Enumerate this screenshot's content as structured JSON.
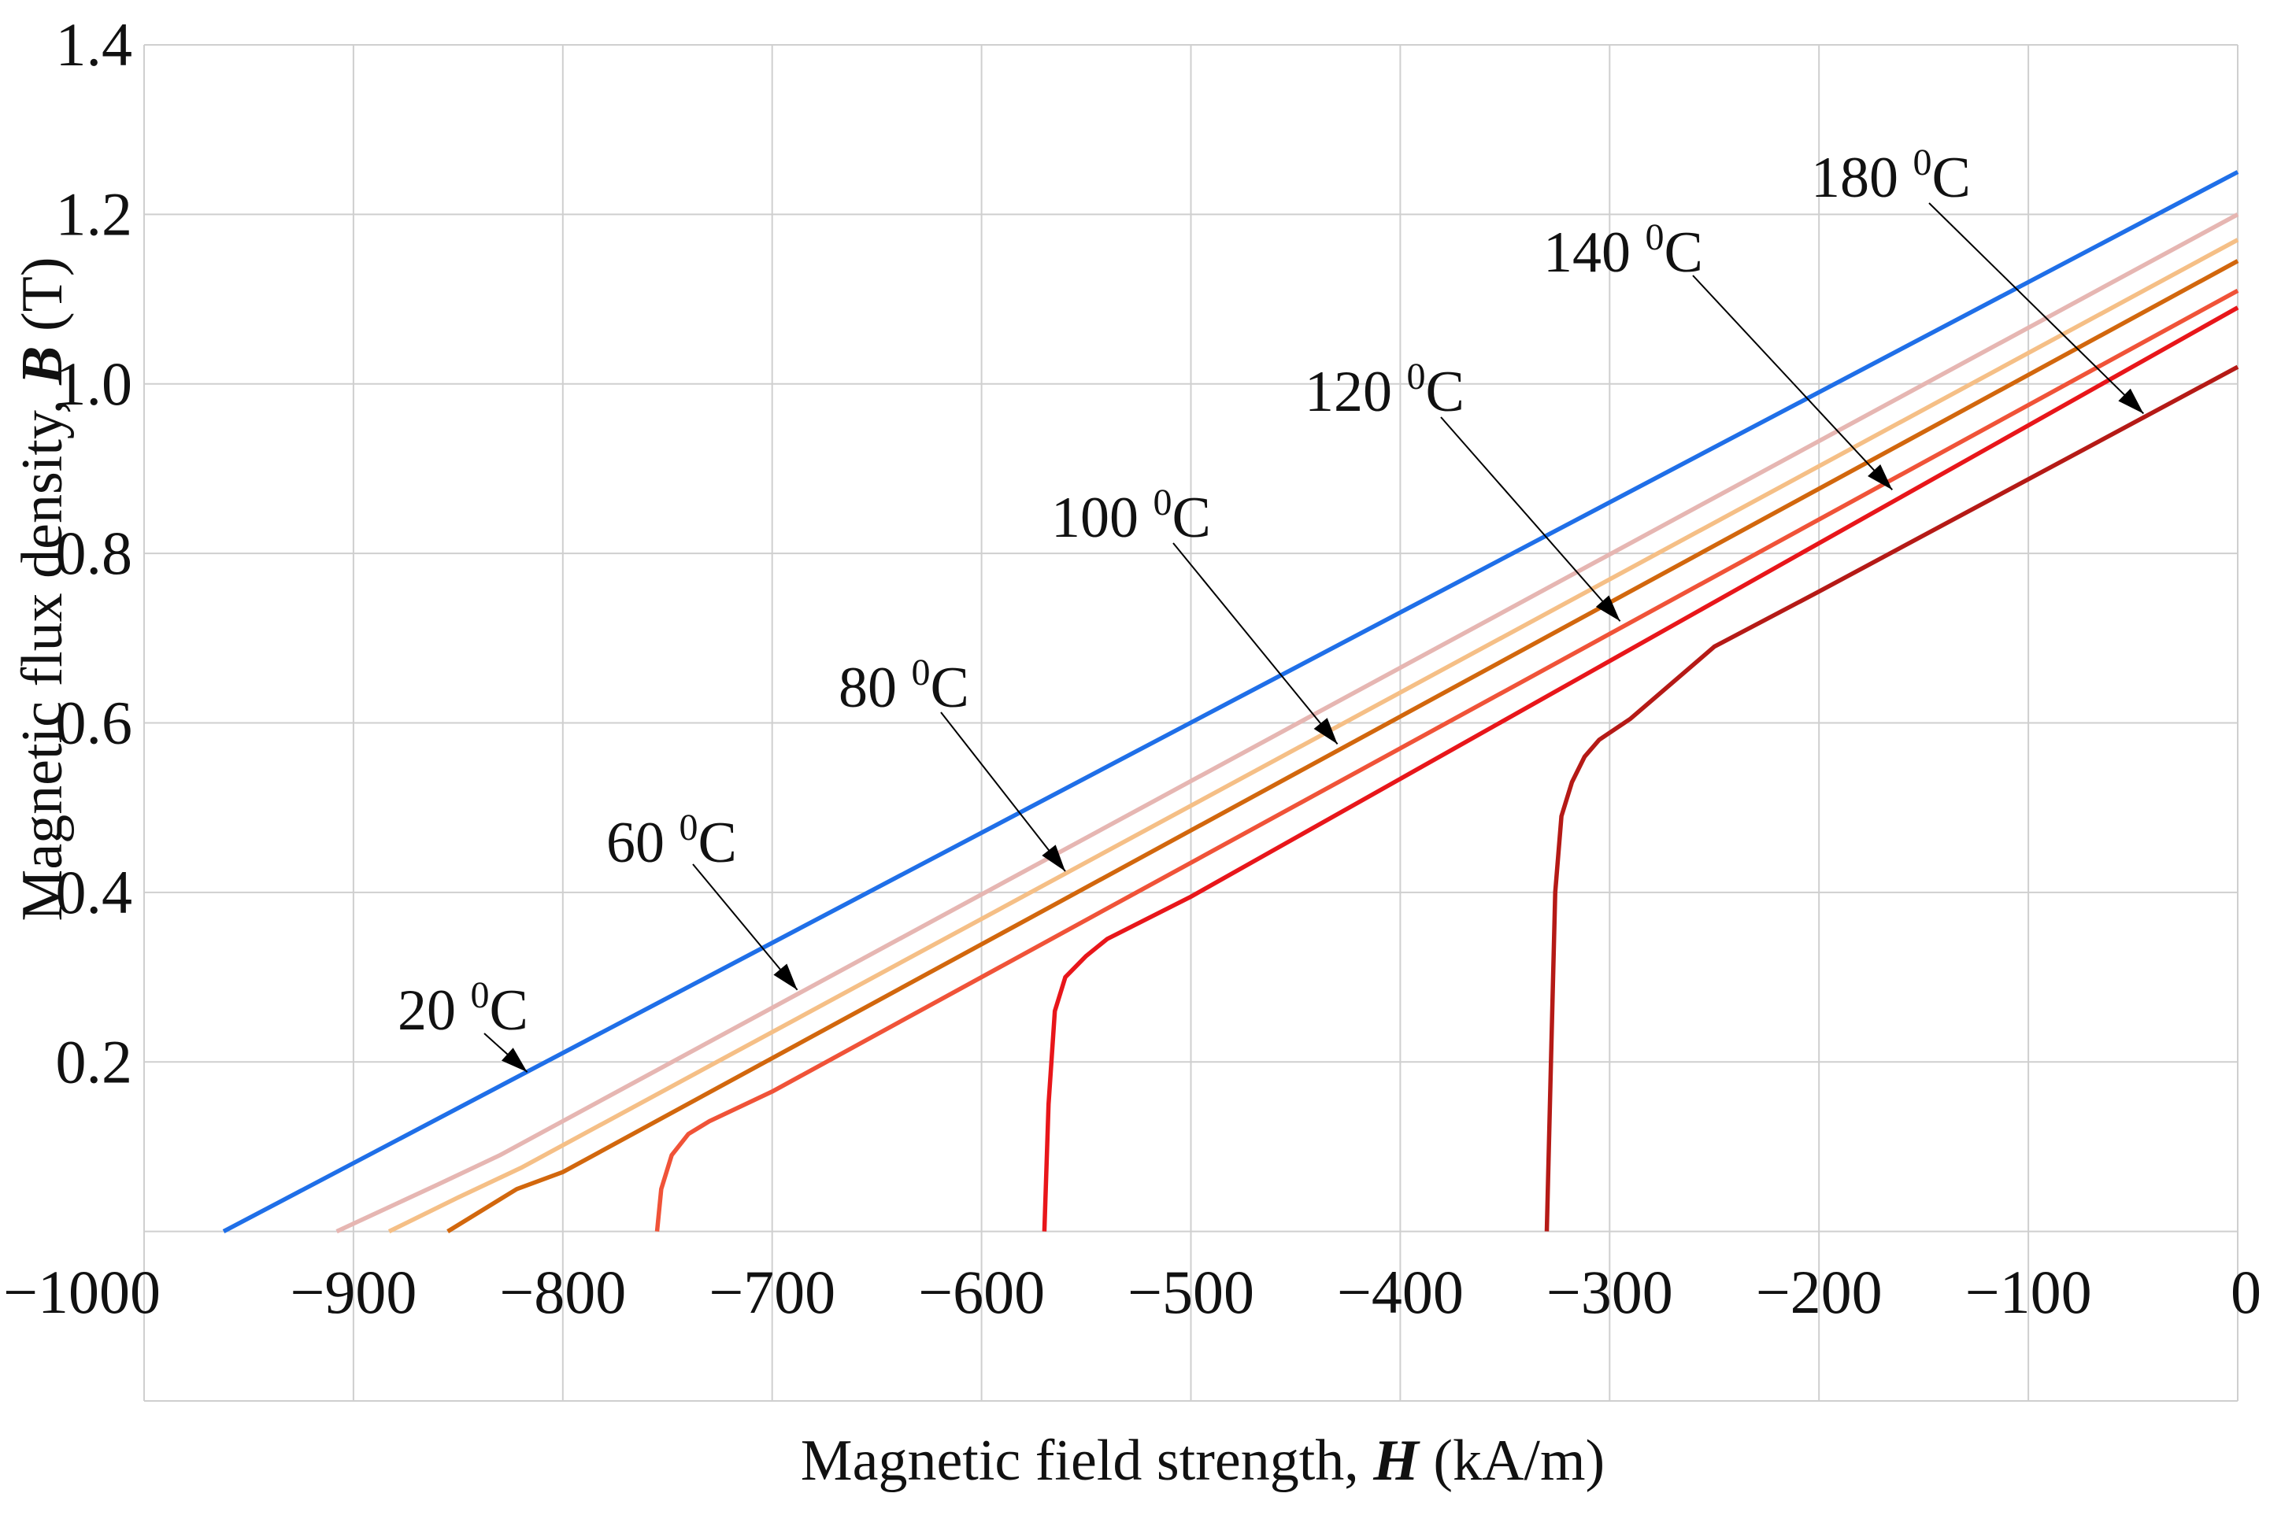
{
  "chart_data": {
    "type": "line",
    "title": "",
    "xlabel": "Magnetic field strength, H  (kA/m)",
    "xlabel_parts": {
      "prefix": "Magnetic field strength, ",
      "symbol": "H",
      "suffix": "  (kA/m)"
    },
    "ylabel": "Magnetic flux density, B (T)",
    "ylabel_parts": {
      "prefix": "Magnetic flux density, ",
      "symbol": "B",
      "suffix": " (T)"
    },
    "xlim": [
      -1000,
      0
    ],
    "ylim": [
      -0.2,
      1.4
    ],
    "x_ticks": [
      -1000,
      -900,
      -800,
      -700,
      -600,
      -500,
      -400,
      -300,
      -200,
      -100,
      0
    ],
    "x_tick_labels": [
      "−1000",
      "−900",
      "−800",
      "−700",
      "−600",
      "−500",
      "−400",
      "−300",
      "−200",
      "−100",
      "0"
    ],
    "y_ticks": [
      0.2,
      0.4,
      0.6,
      0.8,
      1.0,
      1.2,
      1.4
    ],
    "y_tick_labels": [
      "0.2",
      "0.4",
      "0.6",
      "0.8",
      "1.0",
      "1.2",
      "1.4"
    ],
    "grid": true,
    "series": [
      {
        "name": "20 °C",
        "color": "#1f6fe8",
        "x": [
          -962,
          0
        ],
        "y": [
          0.0,
          1.25
        ]
      },
      {
        "name": "60 °C",
        "color": "#e6b6b2",
        "x": [
          -908,
          -860,
          -830,
          0
        ],
        "y": [
          0.0,
          0.055,
          0.09,
          1.2
        ]
      },
      {
        "name": "80 °C",
        "color": "#f5bf86",
        "x": [
          -883,
          -850,
          -820,
          0
        ],
        "y": [
          0.0,
          0.04,
          0.075,
          1.17
        ]
      },
      {
        "name": "100 °C",
        "color": "#d2670d",
        "x": [
          -855,
          -822,
          -800,
          0
        ],
        "y": [
          0.0,
          0.05,
          0.07,
          1.145
        ]
      },
      {
        "name": "120 °C",
        "color": "#f05338",
        "x": [
          -755,
          -753,
          -748,
          -740,
          -730,
          -700,
          0
        ],
        "y": [
          0.0,
          0.05,
          0.09,
          0.115,
          0.13,
          0.165,
          1.11
        ]
      },
      {
        "name": "140 °C",
        "color": "#e8161a",
        "x": [
          -570,
          -568,
          -565,
          -560,
          -550,
          -540,
          -500,
          0
        ],
        "y": [
          0.0,
          0.15,
          0.26,
          0.3,
          0.325,
          0.345,
          0.395,
          1.09
        ]
      },
      {
        "name": "180 °C",
        "color": "#b51a16",
        "x": [
          -330,
          -328,
          -326,
          -323,
          -318,
          -312,
          -305,
          -290,
          -250,
          -200,
          0
        ],
        "y": [
          0.0,
          0.2,
          0.4,
          0.49,
          0.53,
          0.56,
          0.58,
          0.605,
          0.69,
          0.755,
          1.02
        ]
      }
    ],
    "annotations": [
      {
        "label_number": "20 ",
        "label_sup": "0",
        "label_unit": "C",
        "series": "20 °C"
      },
      {
        "label_number": "60 ",
        "label_sup": "0",
        "label_unit": "C",
        "series": "60 °C"
      },
      {
        "label_number": "80 ",
        "label_sup": "0",
        "label_unit": "C",
        "series": "80 °C"
      },
      {
        "label_number": "100 ",
        "label_sup": "0",
        "label_unit": "C",
        "series": "100 °C"
      },
      {
        "label_number": "120 ",
        "label_sup": "0",
        "label_unit": "C",
        "series": "120 °C"
      },
      {
        "label_number": "140 ",
        "label_sup": "0",
        "label_unit": "C",
        "series": "140 °C"
      },
      {
        "label_number": "180 ",
        "label_sup": "0",
        "label_unit": "C",
        "series": "180 °C"
      }
    ]
  }
}
